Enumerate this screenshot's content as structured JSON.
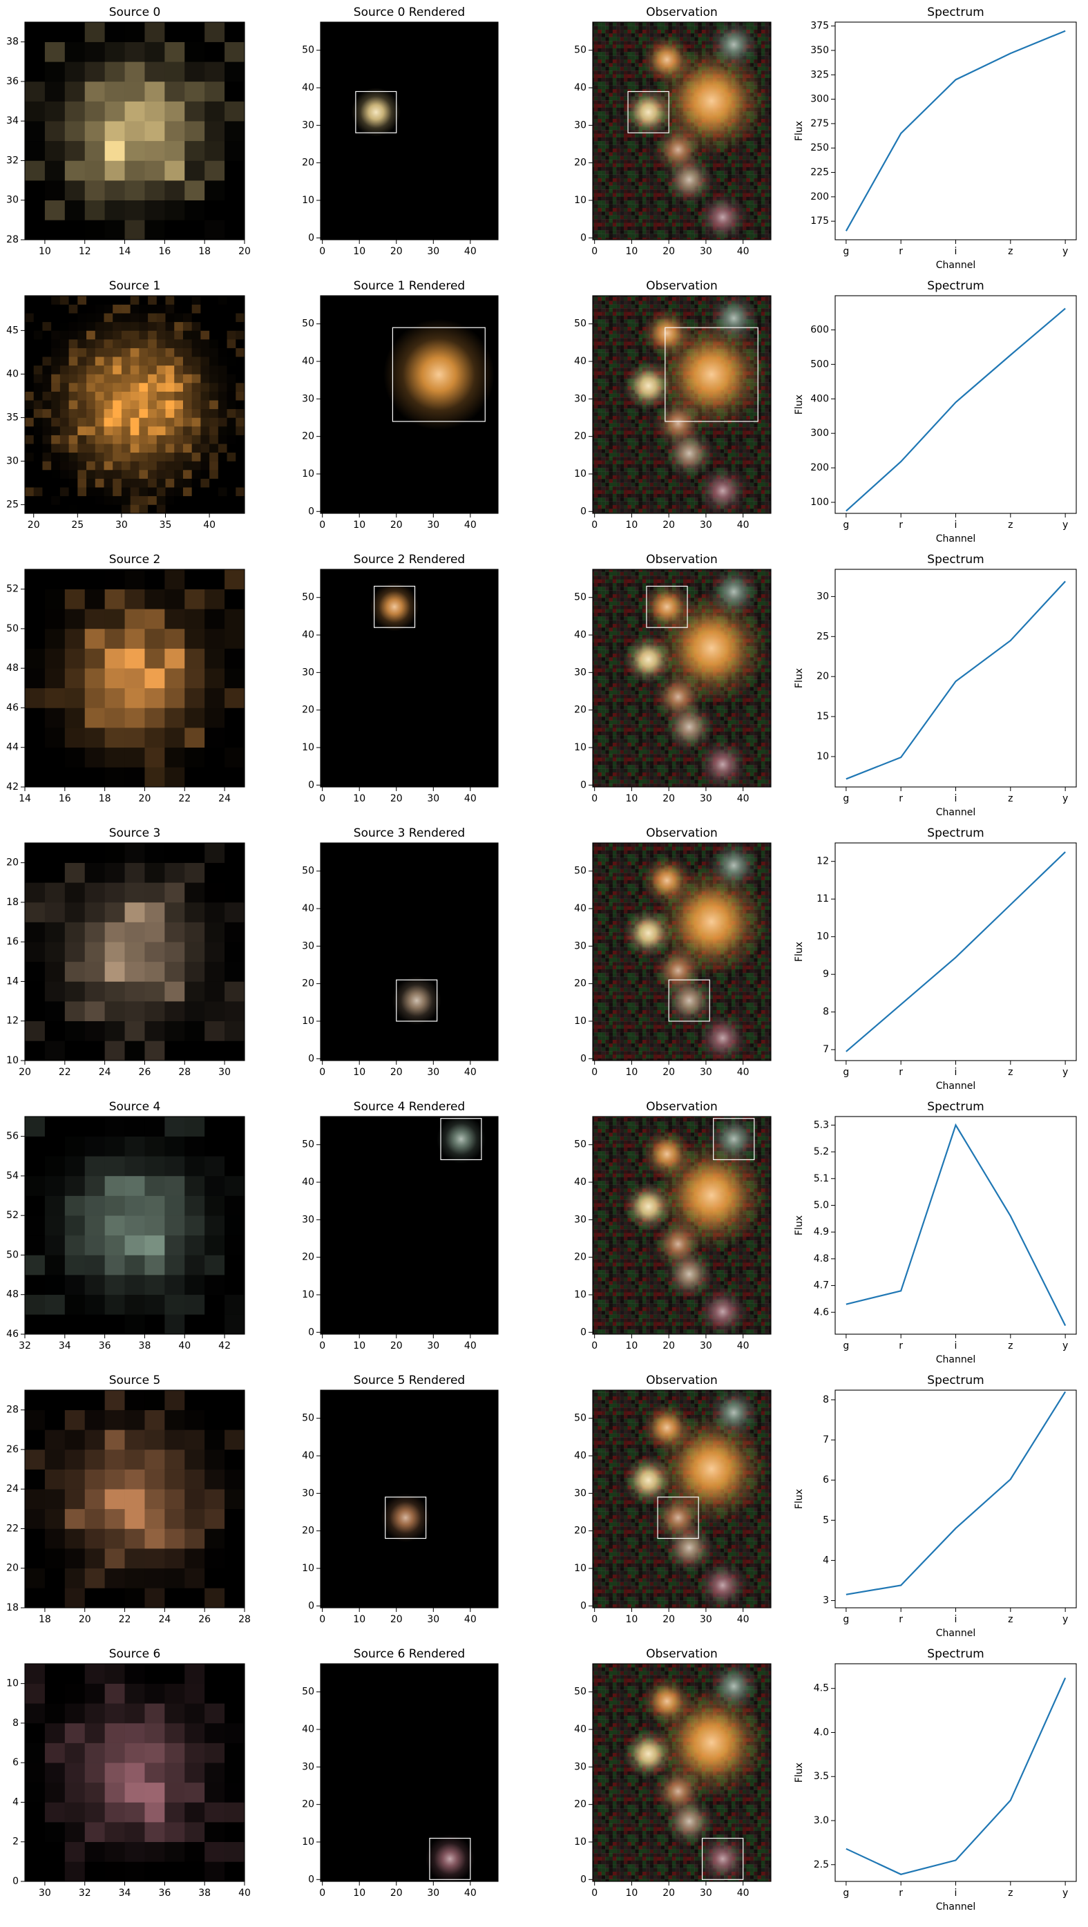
{
  "chart_data": [
    {
      "type": "image",
      "title": "Source 0",
      "xlim": [
        9,
        20
      ],
      "ylim": [
        28,
        39
      ],
      "xticks": [
        10,
        12,
        14,
        16,
        18,
        20
      ],
      "yticks": [
        28,
        30,
        32,
        34,
        36,
        38
      ],
      "color": "#ecd28e"
    },
    {
      "type": "image",
      "title": "Source 0 Rendered",
      "xlim": [
        -0.5,
        47.5
      ],
      "ylim": [
        -0.5,
        57.5
      ],
      "xticks": [
        0,
        10,
        20,
        30,
        40
      ],
      "yticks": [
        0,
        10,
        20,
        30,
        40,
        50
      ],
      "box": {
        "x": [
          9,
          20
        ],
        "y": [
          28,
          39
        ]
      },
      "color": "#ecd28e"
    },
    {
      "type": "image",
      "title": "Observation",
      "xlim": [
        -0.5,
        47.5
      ],
      "ylim": [
        -0.5,
        57.5
      ],
      "xticks": [
        0,
        10,
        20,
        30,
        40
      ],
      "yticks": [
        0,
        10,
        20,
        30,
        40,
        50
      ],
      "box": {
        "x": [
          9,
          20
        ],
        "y": [
          28,
          39
        ]
      }
    },
    {
      "type": "line",
      "title": "Spectrum",
      "categories": [
        "g",
        "r",
        "i",
        "z",
        "y"
      ],
      "values": [
        165,
        265,
        320,
        347,
        370
      ],
      "color": "#1f77b4",
      "xlabel": "Channel",
      "ylabel": "Flux",
      "ylim": [
        156,
        379
      ],
      "yticks": [
        175,
        200,
        225,
        250,
        275,
        300,
        325,
        350,
        375
      ]
    },
    {
      "type": "image",
      "title": "Source 1",
      "xlim": [
        19,
        44
      ],
      "ylim": [
        24,
        49
      ],
      "xticks": [
        20,
        25,
        30,
        35,
        40
      ],
      "yticks": [
        25,
        30,
        35,
        40,
        45
      ],
      "color": "#f3a242"
    },
    {
      "type": "image",
      "title": "Source 1 Rendered",
      "xlim": [
        -0.5,
        47.5
      ],
      "ylim": [
        -0.5,
        57.5
      ],
      "xticks": [
        0,
        10,
        20,
        30,
        40
      ],
      "yticks": [
        0,
        10,
        20,
        30,
        40,
        50
      ],
      "box": {
        "x": [
          19,
          44
        ],
        "y": [
          24,
          49
        ]
      },
      "color": "#f3a242"
    },
    {
      "type": "image",
      "title": "Observation",
      "xlim": [
        -0.5,
        47.5
      ],
      "ylim": [
        -0.5,
        57.5
      ],
      "xticks": [
        0,
        10,
        20,
        30,
        40
      ],
      "yticks": [
        0,
        10,
        20,
        30,
        40,
        50
      ],
      "box": {
        "x": [
          19,
          44
        ],
        "y": [
          24,
          49
        ]
      }
    },
    {
      "type": "line",
      "title": "Spectrum",
      "categories": [
        "g",
        "r",
        "i",
        "z",
        "y"
      ],
      "values": [
        75,
        218,
        390,
        527,
        662
      ],
      "color": "#1f77b4",
      "xlabel": "Channel",
      "ylabel": "Flux",
      "ylim": [
        68,
        699
      ],
      "yticks": [
        100,
        200,
        300,
        400,
        500,
        600
      ]
    },
    {
      "type": "image",
      "title": "Source 2",
      "xlim": [
        14,
        25
      ],
      "ylim": [
        42,
        53
      ],
      "xticks": [
        14,
        16,
        18,
        20,
        22,
        24
      ],
      "yticks": [
        42,
        44,
        46,
        48,
        50,
        52
      ],
      "color": "#e3984a"
    },
    {
      "type": "image",
      "title": "Source 2 Rendered",
      "xlim": [
        -0.5,
        47.5
      ],
      "ylim": [
        -0.5,
        57.5
      ],
      "xticks": [
        0,
        10,
        20,
        30,
        40
      ],
      "yticks": [
        0,
        10,
        20,
        30,
        40,
        50
      ],
      "box": {
        "x": [
          14,
          25
        ],
        "y": [
          42,
          53
        ]
      },
      "color": "#e3984a"
    },
    {
      "type": "image",
      "title": "Observation",
      "xlim": [
        -0.5,
        47.5
      ],
      "ylim": [
        -0.5,
        57.5
      ],
      "xticks": [
        0,
        10,
        20,
        30,
        40
      ],
      "yticks": [
        0,
        10,
        20,
        30,
        40,
        50
      ],
      "box": {
        "x": [
          14,
          25
        ],
        "y": [
          42,
          53
        ]
      }
    },
    {
      "type": "line",
      "title": "Spectrum",
      "categories": [
        "g",
        "r",
        "i",
        "z",
        "y"
      ],
      "values": [
        7.2,
        9.9,
        19.4,
        24.5,
        31.9
      ],
      "color": "#1f77b4",
      "xlabel": "Channel",
      "ylabel": "Flux",
      "ylim": [
        6.2,
        33.4
      ],
      "yticks": [
        10,
        15,
        20,
        25,
        30
      ]
    },
    {
      "type": "image",
      "title": "Source 3",
      "xlim": [
        20,
        31
      ],
      "ylim": [
        10,
        21
      ],
      "xticks": [
        20,
        22,
        24,
        26,
        28,
        30
      ],
      "yticks": [
        10,
        12,
        14,
        16,
        18,
        20
      ],
      "color": "#a68c72"
    },
    {
      "type": "image",
      "title": "Source 3 Rendered",
      "xlim": [
        -0.5,
        47.5
      ],
      "ylim": [
        -0.5,
        57.5
      ],
      "xticks": [
        0,
        10,
        20,
        30,
        40
      ],
      "yticks": [
        0,
        10,
        20,
        30,
        40,
        50
      ],
      "box": {
        "x": [
          20,
          31
        ],
        "y": [
          10,
          21
        ]
      },
      "color": "#a68c72"
    },
    {
      "type": "image",
      "title": "Observation",
      "xlim": [
        -0.5,
        47.5
      ],
      "ylim": [
        -0.5,
        57.5
      ],
      "xticks": [
        0,
        10,
        20,
        30,
        40
      ],
      "yticks": [
        0,
        10,
        20,
        30,
        40,
        50
      ],
      "box": {
        "x": [
          20,
          31
        ],
        "y": [
          10,
          21
        ]
      }
    },
    {
      "type": "line",
      "title": "Spectrum",
      "categories": [
        "g",
        "r",
        "i",
        "z",
        "y"
      ],
      "values": [
        6.95,
        8.2,
        9.45,
        10.85,
        12.25
      ],
      "color": "#1f77b4",
      "xlabel": "Channel",
      "ylabel": "Flux",
      "ylim": [
        6.71,
        12.49
      ],
      "yticks": [
        7,
        8,
        9,
        10,
        11,
        12
      ]
    },
    {
      "type": "image",
      "title": "Source 4",
      "xlim": [
        32,
        43
      ],
      "ylim": [
        46,
        57
      ],
      "xticks": [
        32,
        34,
        36,
        38,
        40,
        42
      ],
      "yticks": [
        46,
        48,
        50,
        52,
        54,
        56
      ],
      "color": "#73897b"
    },
    {
      "type": "image",
      "title": "Source 4 Rendered",
      "xlim": [
        -0.5,
        47.5
      ],
      "ylim": [
        -0.5,
        57.5
      ],
      "xticks": [
        0,
        10,
        20,
        30,
        40
      ],
      "yticks": [
        0,
        10,
        20,
        30,
        40,
        50
      ],
      "box": {
        "x": [
          32,
          43
        ],
        "y": [
          46,
          57
        ]
      },
      "color": "#73897b"
    },
    {
      "type": "image",
      "title": "Observation",
      "xlim": [
        -0.5,
        47.5
      ],
      "ylim": [
        -0.5,
        57.5
      ],
      "xticks": [
        0,
        10,
        20,
        30,
        40
      ],
      "yticks": [
        0,
        10,
        20,
        30,
        40,
        50
      ],
      "box": {
        "x": [
          32,
          43
        ],
        "y": [
          46,
          57
        ]
      }
    },
    {
      "type": "line",
      "title": "Spectrum",
      "categories": [
        "g",
        "r",
        "i",
        "z",
        "y"
      ],
      "values": [
        4.63,
        4.68,
        5.3,
        4.96,
        4.55
      ],
      "color": "#1f77b4",
      "xlabel": "Channel",
      "ylabel": "Flux",
      "ylim": [
        4.518,
        5.332
      ],
      "yticks": [
        4.6,
        4.7,
        4.8,
        4.9,
        {
          "value": 5,
          "label": "5.0"
        },
        5.1,
        5.2,
        5.3
      ]
    },
    {
      "type": "image",
      "title": "Source 5",
      "xlim": [
        17,
        28
      ],
      "ylim": [
        18,
        29
      ],
      "xticks": [
        18,
        20,
        22,
        24,
        26,
        28
      ],
      "yticks": [
        18,
        20,
        22,
        24,
        26,
        28
      ],
      "color": "#b57a50"
    },
    {
      "type": "image",
      "title": "Source 5 Rendered",
      "xlim": [
        -0.5,
        47.5
      ],
      "ylim": [
        -0.5,
        57.5
      ],
      "xticks": [
        0,
        10,
        20,
        30,
        40
      ],
      "yticks": [
        0,
        10,
        20,
        30,
        40,
        50
      ],
      "box": {
        "x": [
          17,
          28
        ],
        "y": [
          18,
          29
        ]
      },
      "color": "#b57a50"
    },
    {
      "type": "image",
      "title": "Observation",
      "xlim": [
        -0.5,
        47.5
      ],
      "ylim": [
        -0.5,
        57.5
      ],
      "xticks": [
        0,
        10,
        20,
        30,
        40
      ],
      "yticks": [
        0,
        10,
        20,
        30,
        40,
        50
      ],
      "box": {
        "x": [
          17,
          28
        ],
        "y": [
          18,
          29
        ]
      }
    },
    {
      "type": "line",
      "title": "Spectrum",
      "categories": [
        "g",
        "r",
        "i",
        "z",
        "y"
      ],
      "values": [
        3.15,
        3.38,
        4.8,
        6.02,
        8.2
      ],
      "color": "#1f77b4",
      "xlabel": "Channel",
      "ylabel": "Flux",
      "ylim": [
        2.82,
        8.24
      ],
      "yticks": [
        3,
        4,
        5,
        6,
        7,
        8
      ]
    },
    {
      "type": "image",
      "title": "Source 6",
      "xlim": [
        29,
        40
      ],
      "ylim": [
        0,
        11
      ],
      "xticks": [
        30,
        32,
        34,
        36,
        38,
        40
      ],
      "yticks": [
        0,
        2,
        4,
        6,
        8,
        10
      ],
      "color": "#94606a"
    },
    {
      "type": "image",
      "title": "Source 6 Rendered",
      "xlim": [
        -0.5,
        47.5
      ],
      "ylim": [
        -0.5,
        57.5
      ],
      "xticks": [
        0,
        10,
        20,
        30,
        40
      ],
      "yticks": [
        0,
        10,
        20,
        30,
        40,
        50
      ],
      "box": {
        "x": [
          29,
          40
        ],
        "y": [
          0,
          11
        ]
      },
      "color": "#94606a"
    },
    {
      "type": "image",
      "title": "Observation",
      "xlim": [
        -0.5,
        47.5
      ],
      "ylim": [
        -0.5,
        57.5
      ],
      "xticks": [
        0,
        10,
        20,
        30,
        40
      ],
      "yticks": [
        0,
        10,
        20,
        30,
        40,
        50
      ],
      "box": {
        "x": [
          29,
          40
        ],
        "y": [
          0,
          11
        ]
      }
    },
    {
      "type": "line",
      "title": "Spectrum",
      "categories": [
        "g",
        "r",
        "i",
        "z",
        "y"
      ],
      "values": [
        2.68,
        2.39,
        2.55,
        3.23,
        4.62
      ],
      "color": "#1f77b4",
      "xlabel": "Channel",
      "ylabel": "Flux",
      "ylim": [
        2.31,
        4.78
      ],
      "yticks": [
        2.5,
        {
          "value": 3,
          "label": "3.0"
        },
        3.5,
        {
          "value": 4,
          "label": "4.0"
        },
        4.5
      ]
    }
  ]
}
